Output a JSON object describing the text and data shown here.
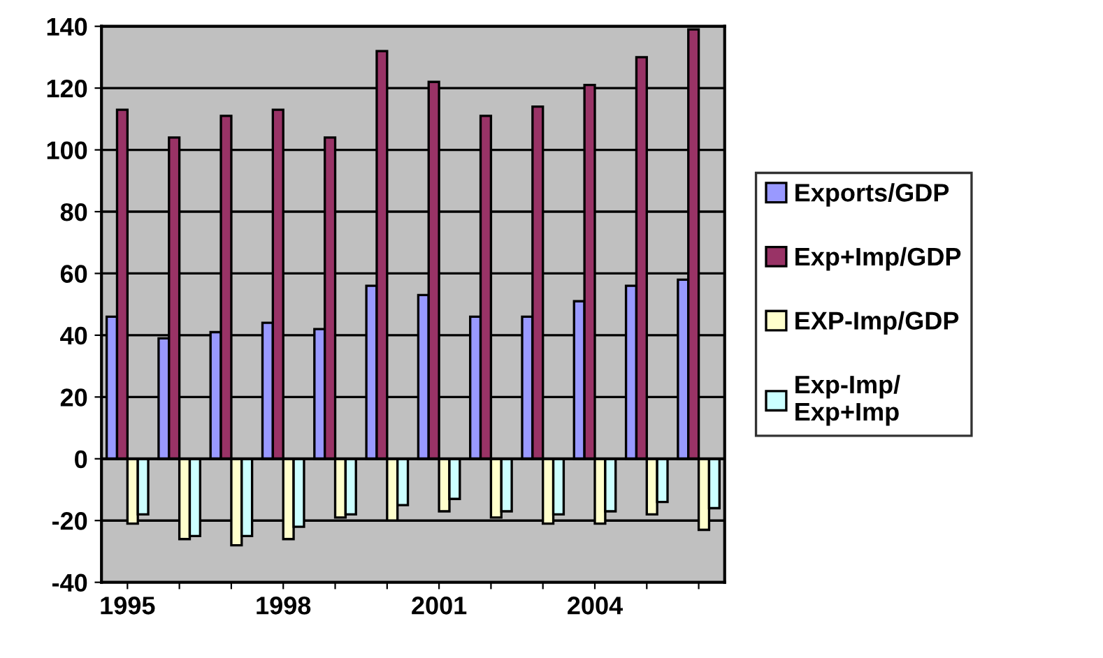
{
  "chart_data": {
    "type": "bar",
    "categories": [
      "1995",
      null,
      null,
      "1998",
      null,
      null,
      "2001",
      null,
      null,
      "2004",
      null,
      null
    ],
    "series": [
      {
        "name": "Exports/GDP",
        "color": "#9999ff",
        "values": [
          46,
          39,
          41,
          44,
          42,
          56,
          53,
          46,
          46,
          51,
          56,
          58
        ]
      },
      {
        "name": "Exp+Imp/GDP",
        "color": "#993366",
        "values": [
          113,
          104,
          111,
          113,
          104,
          132,
          122,
          111,
          114,
          121,
          130,
          139
        ]
      },
      {
        "name": "EXP-Imp/GDP",
        "color": "#ffffcc",
        "values": [
          -21,
          -26,
          -28,
          -26,
          -19,
          -20,
          -17,
          -19,
          -21,
          -21,
          -18,
          -23
        ]
      },
      {
        "name": "Exp-Imp/\nExp+Imp",
        "color": "#ccffff",
        "values": [
          -18,
          -25,
          -25,
          -22,
          -18,
          -15,
          -13,
          -17,
          -18,
          -17,
          -14,
          -16
        ]
      }
    ],
    "ylim": [
      -40,
      140
    ],
    "yticks": [
      -40,
      -20,
      0,
      20,
      40,
      60,
      80,
      100,
      120,
      140
    ],
    "grid": "y",
    "legend": "right"
  }
}
